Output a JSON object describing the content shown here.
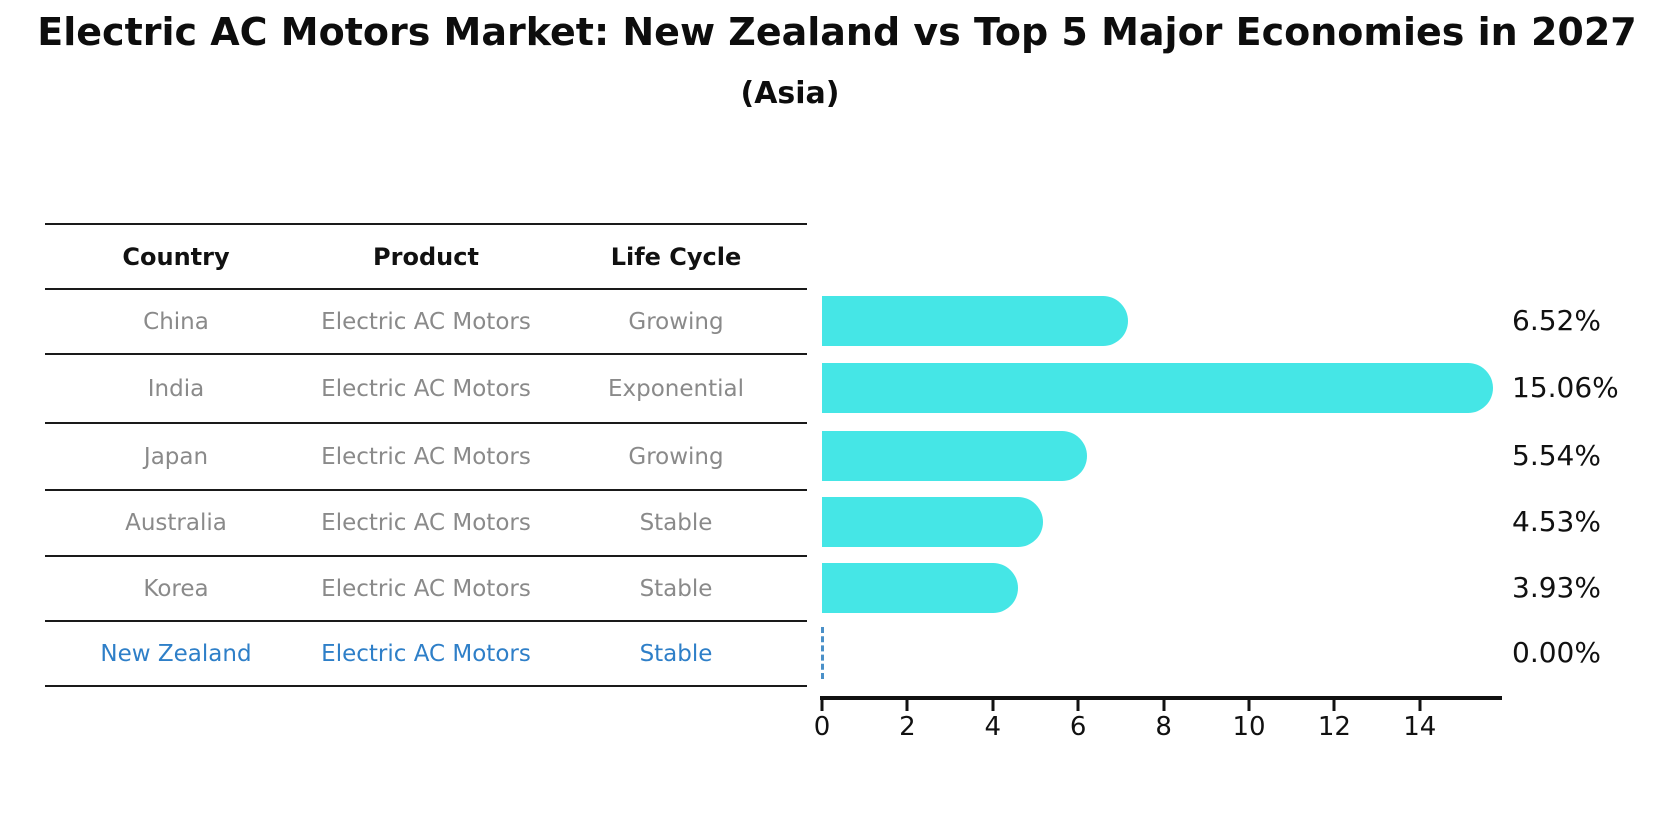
{
  "title": "Electric AC Motors Market: New Zealand vs Top 5 Major Economies in 2027",
  "subtitle": "(Asia)",
  "table": {
    "headers": [
      "Country",
      "Product",
      "Life Cycle"
    ],
    "rows": [
      {
        "country": "China",
        "product": "Electric AC Motors",
        "life_cycle": "Growing",
        "highlight": false
      },
      {
        "country": "India",
        "product": "Electric AC Motors",
        "life_cycle": "Exponential",
        "highlight": false
      },
      {
        "country": "Japan",
        "product": "Electric AC Motors",
        "life_cycle": "Growing",
        "highlight": false
      },
      {
        "country": "Australia",
        "product": "Electric AC Motors",
        "life_cycle": "Stable",
        "highlight": false
      },
      {
        "country": "Korea",
        "product": "Electric AC Motors",
        "life_cycle": "Stable",
        "highlight": true
      },
      {
        "country": "New Zealand",
        "product": "Electric AC Motors",
        "life_cycle": "Stable",
        "highlight": true
      }
    ]
  },
  "chart_data": {
    "type": "bar",
    "orientation": "horizontal",
    "title": "Electric AC Motors Market: New Zealand vs Top 5 Major Economies in 2027",
    "subtitle": "(Asia)",
    "categories": [
      "China",
      "India",
      "Japan",
      "Australia",
      "Korea",
      "New Zealand"
    ],
    "values": [
      6.52,
      15.06,
      5.54,
      4.53,
      3.93,
      0.0
    ],
    "value_labels": [
      "6.52%",
      "15.06%",
      "5.54%",
      "4.53%",
      "3.93%",
      "0.00%"
    ],
    "x_ticks": [
      0,
      2,
      4,
      6,
      8,
      10,
      12,
      14
    ],
    "xlim": [
      0,
      15.9
    ],
    "xlabel": "",
    "ylabel": "",
    "grid": false,
    "legend": "none",
    "bar_color": "#45e6e6",
    "zero_marker_style": "dashed-line",
    "zero_marker_color": "#4a90c8",
    "highlight_text_color": "#2e7fc8",
    "text_color": "#111111",
    "muted_text_color": "#8a8a8a"
  }
}
